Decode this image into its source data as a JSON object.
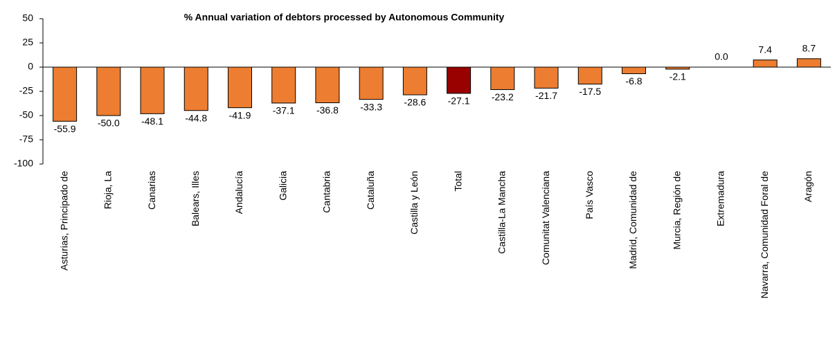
{
  "chart_data": {
    "type": "bar",
    "title": "% Annual variation of debtors processed by Autonomous Community",
    "categories": [
      "Asturias, Principado de",
      "Rioja, La",
      "Canarias",
      "Balears, Illes",
      "Andalucía",
      "Galicia",
      "Cantabria",
      "Cataluña",
      "Castilla y León",
      "Total",
      "Castilla-La Mancha",
      "Comunitat Valenciana",
      "País Vasco",
      "Madrid, Comunidad de",
      "Murcia, Región de",
      "Extremadura",
      "Navarra, Comunidad Foral de",
      "Aragón"
    ],
    "values": [
      -55.9,
      -50.0,
      -48.1,
      -44.8,
      -41.9,
      -37.1,
      -36.8,
      -33.3,
      -28.6,
      -27.1,
      -23.2,
      -21.7,
      -17.5,
      -6.8,
      -2.1,
      0.0,
      7.4,
      8.7
    ],
    "value_labels": [
      "-55.9",
      "-50.0",
      "-48.1",
      "-44.8",
      "-41.9",
      "-37.1",
      "-36.8",
      "-33.3",
      "-28.6",
      "-27.1",
      "-23.2",
      "-21.7",
      "-17.5",
      "-6.8",
      "-2.1",
      "0.0",
      "7.4",
      "8.7"
    ],
    "colors": [
      "#ED7D31",
      "#ED7D31",
      "#ED7D31",
      "#ED7D31",
      "#ED7D31",
      "#ED7D31",
      "#ED7D31",
      "#ED7D31",
      "#ED7D31",
      "#990000",
      "#ED7D31",
      "#ED7D31",
      "#ED7D31",
      "#ED7D31",
      "#ED7D31",
      "#ED7D31",
      "#ED7D31",
      "#ED7D31"
    ],
    "ylim": [
      -100,
      50
    ],
    "yticks": [
      -100,
      -75,
      -50,
      -25,
      0,
      25,
      50
    ],
    "grid": false
  }
}
